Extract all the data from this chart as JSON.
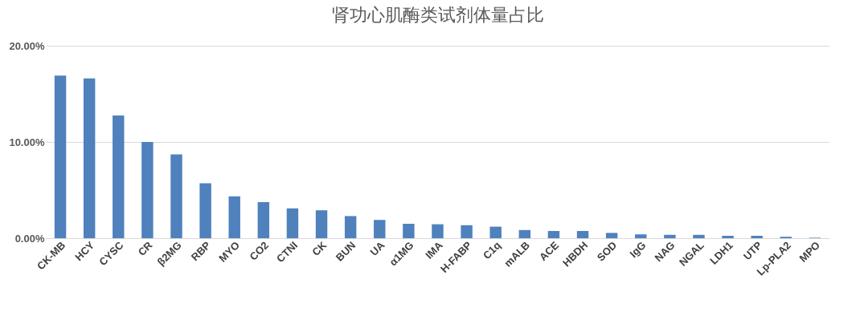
{
  "chart_data": {
    "type": "bar",
    "title": "肾功心肌酶类试剂体量占比",
    "categories": [
      "CK-MB",
      "HCY",
      "CYSC",
      "CR",
      "β2MG",
      "RBP",
      "MYO",
      "CO2",
      "CTNI",
      "CK",
      "BUN",
      "UA",
      "α1MG",
      "IMA",
      "H-FABP",
      "C1q",
      "mALB",
      "ACE",
      "HBDH",
      "SOD",
      "IgG",
      "NAG",
      "NGAL",
      "LDH1",
      "UTP",
      "Lp-PLA2",
      "MPO"
    ],
    "values": [
      16.9,
      16.6,
      12.75,
      10.0,
      8.7,
      5.7,
      4.35,
      3.75,
      3.1,
      2.9,
      2.3,
      1.9,
      1.5,
      1.45,
      1.35,
      1.2,
      0.85,
      0.75,
      0.75,
      0.55,
      0.4,
      0.35,
      0.35,
      0.25,
      0.25,
      0.15,
      0.05
    ],
    "color": "#4f81bd",
    "ylim": [
      0,
      20
    ],
    "yticks": [
      {
        "value": 0,
        "label": "0.00%"
      },
      {
        "value": 10,
        "label": "10.00%"
      },
      {
        "value": 20,
        "label": "20.00%"
      }
    ],
    "grid": "y"
  }
}
